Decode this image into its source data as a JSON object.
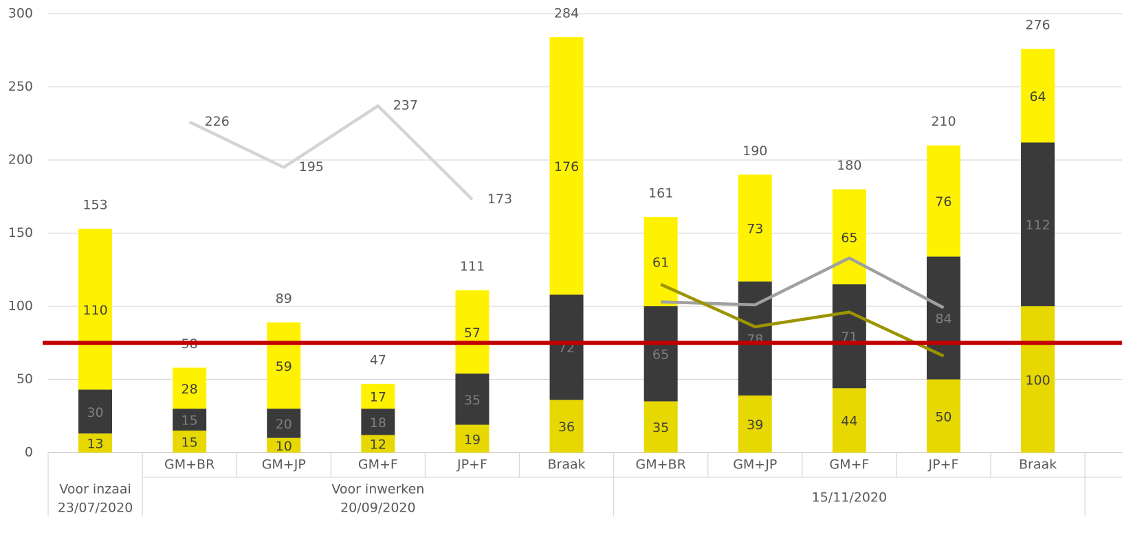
{
  "chart_data": {
    "type": "stacked_bar_line",
    "categories": [
      null,
      "GM+BR",
      "GM+JP",
      "GM+F",
      "JP+F",
      "Braak",
      "GM+BR",
      "GM+JP",
      "GM+F",
      "JP+F",
      "Braak"
    ],
    "groups": [
      [
        "Voor inzaai",
        "23/07/2020"
      ],
      [
        "Voor inwerken",
        "20/09/2020"
      ],
      [
        "15/11/2020"
      ]
    ],
    "series": [
      {
        "color": "#e6d800",
        "label_color": "#404040",
        "values": [
          13,
          15,
          10,
          12,
          19,
          36,
          35,
          39,
          44,
          50,
          100
        ]
      },
      {
        "color": "#3a3a3a",
        "label_color": "#7f7f7f",
        "values": [
          30,
          15,
          20,
          18,
          35,
          72,
          65,
          78,
          71,
          84,
          112
        ]
      },
      {
        "color": "#fff200",
        "label_color": "#404040",
        "values": [
          110,
          28,
          59,
          17,
          57,
          176,
          61,
          73,
          65,
          76,
          64
        ]
      }
    ],
    "totals": [
      153,
      58,
      89,
      47,
      111,
      284,
      161,
      190,
      180,
      210,
      276
    ],
    "lines": [
      {
        "color": "#d4d4d4",
        "labeled": true,
        "values": [
          null,
          226,
          195,
          237,
          173,
          null,
          null,
          null,
          null,
          null,
          null
        ]
      },
      {
        "color": "#a0a0a0",
        "labeled": false,
        "values": [
          null,
          null,
          null,
          null,
          null,
          null,
          103,
          101,
          133,
          99,
          null
        ]
      },
      {
        "color": "#9c9400",
        "labeled": false,
        "values": [
          null,
          null,
          null,
          null,
          null,
          null,
          115,
          86,
          96,
          66,
          null
        ]
      }
    ],
    "reference_line": {
      "value": 75,
      "color": "#c00000"
    },
    "ylim": [
      0,
      300
    ],
    "yticks": [
      0,
      50,
      100,
      150,
      200,
      250,
      300
    ],
    "grid": true
  }
}
